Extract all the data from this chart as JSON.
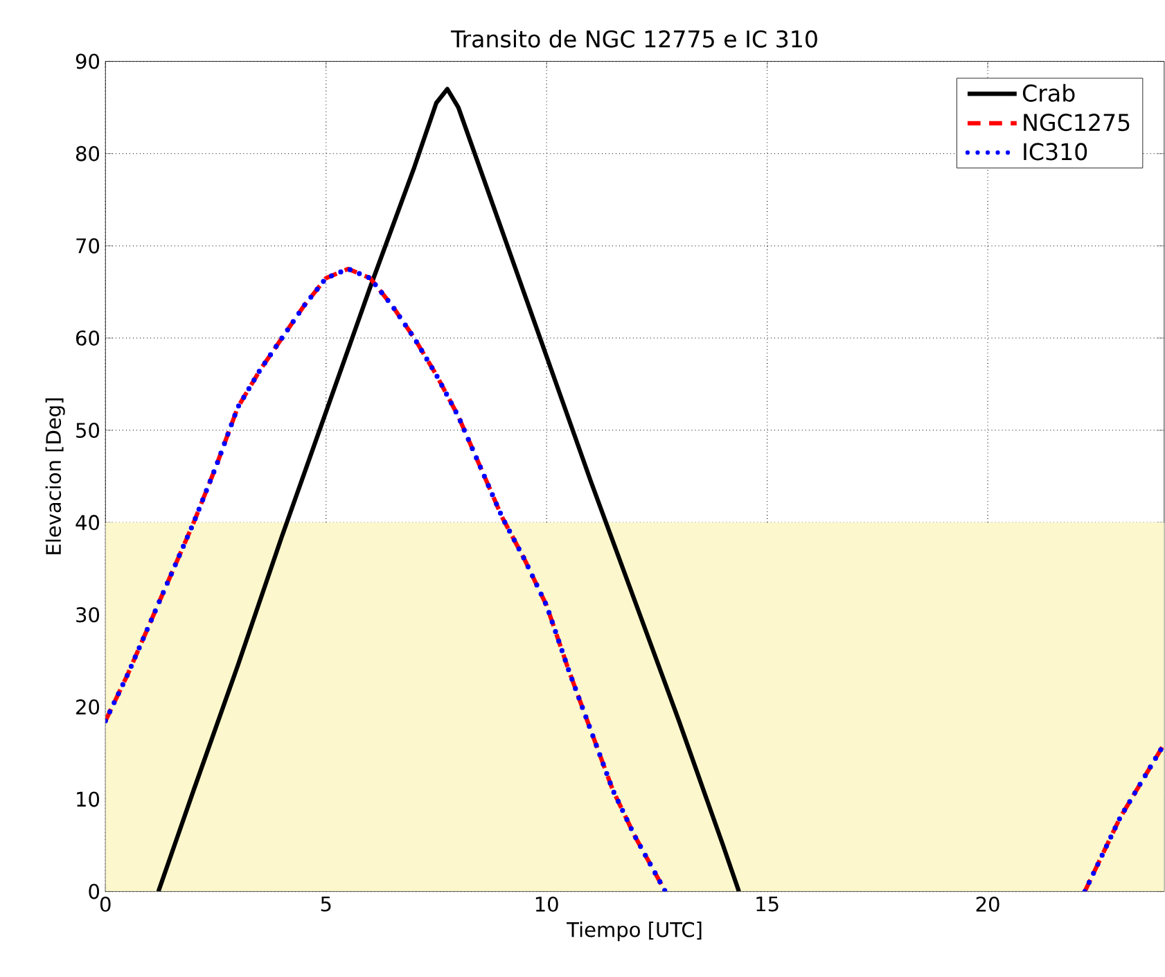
{
  "chart_data": {
    "type": "line",
    "title": "Transito de NGC 12775 e IC 310",
    "xlabel": "Tiempo [UTC]",
    "ylabel": "Elevacion [Deg]",
    "xlim": [
      0,
      24
    ],
    "xticks": [
      0,
      5,
      10,
      15,
      20
    ],
    "ylim": [
      0,
      90
    ],
    "yticks": [
      0,
      10,
      20,
      30,
      40,
      50,
      60,
      70,
      80,
      90
    ],
    "grid": true,
    "legend": "top right",
    "bands": [
      {
        "axis": "y",
        "from": 0,
        "to": 40,
        "color": "#fcf7cc"
      }
    ],
    "series": [
      {
        "name": "Crab",
        "color": "#000000",
        "line_style": "solid",
        "x": [
          1.2,
          2,
          3,
          4,
          5,
          6,
          7,
          7.5,
          7.75,
          8,
          9,
          10,
          11,
          12,
          13,
          14,
          14.36
        ],
        "values": [
          0,
          11,
          24.5,
          38.5,
          52,
          65.5,
          78.5,
          85.5,
          87,
          85,
          71.5,
          58,
          44.5,
          31.5,
          18.5,
          5,
          0
        ]
      },
      {
        "name": "NGC1275",
        "color": "#ff0000",
        "line_style": "dashed",
        "x": [
          0,
          0.5,
          1,
          1.5,
          2,
          2.5,
          3,
          3.5,
          4,
          4.5,
          5,
          5.5,
          6,
          6.5,
          7,
          7.5,
          8,
          8.5,
          9,
          9.5,
          10,
          10.5,
          11,
          11.5,
          12,
          12.69,
          17,
          22.2,
          23,
          24
        ],
        "values": [
          18.5,
          23.5,
          29,
          34.5,
          40,
          46,
          52.5,
          56.5,
          60,
          63.5,
          66.5,
          67.5,
          66.5,
          63.5,
          60,
          56,
          51.5,
          46,
          40.5,
          36,
          31,
          24,
          17.5,
          11,
          6,
          0,
          null,
          0,
          8,
          16
        ]
      },
      {
        "name": "IC310",
        "color": "#0000ff",
        "line_style": "dotted",
        "x": [
          0,
          0.5,
          1,
          1.5,
          2,
          2.5,
          3,
          3.5,
          4,
          4.5,
          5,
          5.5,
          6,
          6.5,
          7,
          7.5,
          8,
          8.5,
          9,
          9.5,
          10,
          10.5,
          11,
          11.5,
          12,
          12.69,
          17,
          22.2,
          23,
          24
        ],
        "values": [
          18.5,
          23.5,
          29,
          34.5,
          40,
          46,
          52.5,
          56.5,
          60,
          63.5,
          66.5,
          67.5,
          66.5,
          63.5,
          60,
          56,
          51.5,
          46,
          40.5,
          36,
          31,
          24,
          17.5,
          11,
          6,
          0,
          null,
          0,
          8,
          16
        ]
      }
    ]
  }
}
